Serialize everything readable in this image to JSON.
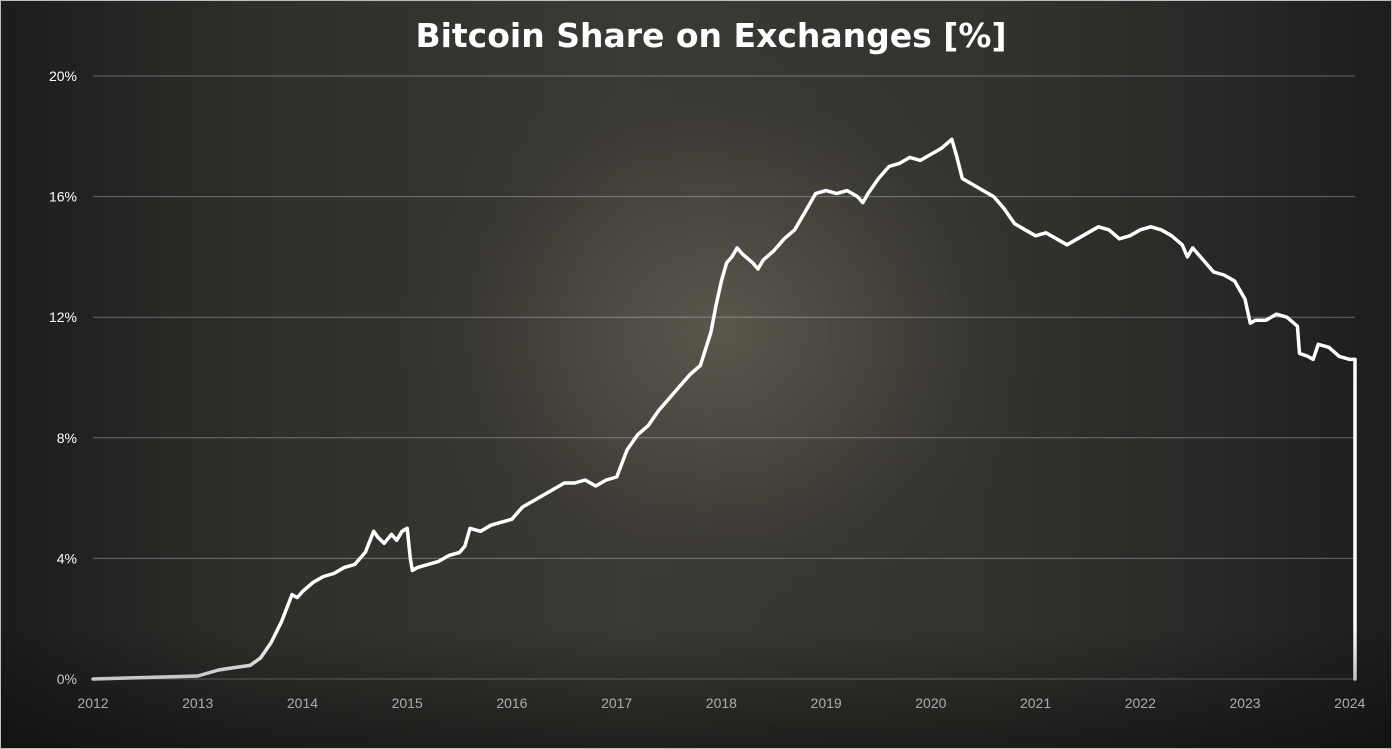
{
  "chart_data": {
    "type": "line",
    "title": "Bitcoin Share on Exchanges [%]",
    "xlabel": "",
    "ylabel": "",
    "xlim": [
      2012.0,
      2024.05
    ],
    "ylim": [
      0,
      20
    ],
    "x_ticks": [
      "2012",
      "2013",
      "2014",
      "2015",
      "2016",
      "2017",
      "2018",
      "2019",
      "2020",
      "2021",
      "2022",
      "2023",
      "2024"
    ],
    "y_ticks": [
      "0%",
      "4%",
      "8%",
      "12%",
      "16%",
      "20%"
    ],
    "y_tick_values": [
      0,
      4,
      8,
      12,
      16,
      20
    ],
    "grid": true,
    "legend": "none",
    "colors": {
      "line": "#ffffff",
      "grid": "#7f7f7f",
      "text": "#ffffff"
    },
    "series": [
      {
        "x": [
          2012.0,
          2012.5,
          2013.0,
          2013.1,
          2013.2,
          2013.3,
          2013.5,
          2013.6,
          2013.7,
          2013.8,
          2013.9,
          2013.95,
          2014.0,
          2014.1,
          2014.2,
          2014.3,
          2014.4,
          2014.5,
          2014.6,
          2014.68,
          2014.72,
          2014.78,
          2014.85,
          2014.9,
          2014.95,
          2015.0,
          2015.03,
          2015.05,
          2015.1,
          2015.2,
          2015.3,
          2015.4,
          2015.5,
          2015.55,
          2015.6,
          2015.7,
          2015.8,
          2015.9,
          2016.0,
          2016.1,
          2016.2,
          2016.3,
          2016.4,
          2016.5,
          2016.6,
          2016.7,
          2016.8,
          2016.9,
          2017.0,
          2017.1,
          2017.2,
          2017.3,
          2017.4,
          2017.5,
          2017.6,
          2017.7,
          2017.8,
          2017.9,
          2017.95,
          2018.0,
          2018.05,
          2018.1,
          2018.15,
          2018.2,
          2018.3,
          2018.35,
          2018.4,
          2018.5,
          2018.6,
          2018.7,
          2018.8,
          2018.9,
          2019.0,
          2019.1,
          2019.2,
          2019.3,
          2019.35,
          2019.4,
          2019.5,
          2019.6,
          2019.7,
          2019.8,
          2019.9,
          2020.0,
          2020.1,
          2020.2,
          2020.25,
          2020.3,
          2020.4,
          2020.5,
          2020.6,
          2020.7,
          2020.8,
          2020.9,
          2021.0,
          2021.1,
          2021.2,
          2021.3,
          2021.4,
          2021.5,
          2021.6,
          2021.7,
          2021.8,
          2021.9,
          2022.0,
          2022.1,
          2022.2,
          2022.3,
          2022.4,
          2022.45,
          2022.5,
          2022.6,
          2022.7,
          2022.8,
          2022.9,
          2023.0,
          2023.05,
          2023.1,
          2023.2,
          2023.3,
          2023.4,
          2023.5,
          2023.52,
          2023.6,
          2023.65,
          2023.7,
          2023.8,
          2023.9,
          2024.0,
          2024.05
        ],
        "values": [
          0.0,
          0.05,
          0.1,
          0.2,
          0.3,
          0.35,
          0.45,
          0.7,
          1.2,
          1.9,
          2.8,
          2.7,
          2.9,
          3.2,
          3.4,
          3.5,
          3.7,
          3.8,
          4.2,
          4.9,
          4.7,
          4.5,
          4.8,
          4.6,
          4.9,
          5.0,
          4.0,
          3.6,
          3.7,
          3.8,
          3.9,
          4.1,
          4.2,
          4.4,
          5.0,
          4.9,
          5.1,
          5.2,
          5.3,
          5.7,
          5.9,
          6.1,
          6.3,
          6.5,
          6.5,
          6.6,
          6.4,
          6.6,
          6.7,
          7.6,
          8.1,
          8.4,
          8.9,
          9.3,
          9.7,
          10.1,
          10.4,
          11.5,
          12.4,
          13.2,
          13.8,
          14.0,
          14.3,
          14.1,
          13.8,
          13.6,
          13.9,
          14.2,
          14.6,
          14.9,
          15.5,
          16.1,
          16.2,
          16.1,
          16.2,
          16.0,
          15.8,
          16.1,
          16.6,
          17.0,
          17.1,
          17.3,
          17.2,
          17.4,
          17.6,
          17.9,
          17.3,
          16.6,
          16.4,
          16.2,
          16.0,
          15.6,
          15.1,
          14.9,
          14.7,
          14.8,
          14.6,
          14.4,
          14.6,
          14.8,
          15.0,
          14.9,
          14.6,
          14.7,
          14.9,
          15.0,
          14.9,
          14.7,
          14.4,
          14.0,
          14.3,
          13.9,
          13.5,
          13.4,
          13.2,
          12.6,
          11.8,
          11.9,
          11.9,
          12.1,
          12.0,
          11.7,
          10.8,
          10.7,
          10.6,
          11.1,
          11.0,
          10.7,
          10.6,
          10.6
        ]
      }
    ]
  }
}
